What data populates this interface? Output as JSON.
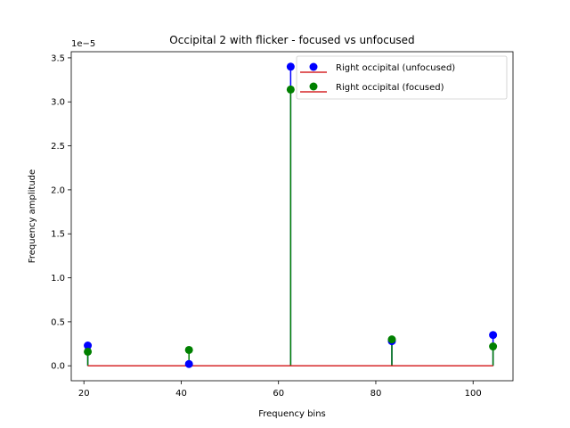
{
  "chart_data": {
    "type": "scatter",
    "title": "Occipital 2 with flicker - focused vs unfocused",
    "xlabel": "Frequency bins",
    "ylabel": "Frequency amplitude",
    "y_scale_label": "1e−5",
    "xlim": [
      17.4,
      108.2
    ],
    "ylim": [
      -0.17,
      3.57
    ],
    "x_ticks": [
      20,
      40,
      60,
      80,
      100
    ],
    "x_tick_labels": [
      "20",
      "40",
      "60",
      "80",
      "100"
    ],
    "y_ticks": [
      0.0,
      0.5,
      1.0,
      1.5,
      2.0,
      2.5,
      3.0,
      3.5
    ],
    "y_tick_labels": [
      "0.0",
      "0.5",
      "1.0",
      "1.5",
      "2.0",
      "2.5",
      "3.0",
      "3.5"
    ],
    "legend_position": "top-right",
    "baseline": {
      "value": 0,
      "color": "#d62728"
    },
    "grid": false,
    "series": [
      {
        "name": "Right occipital (unfocused)",
        "color": "#0000ff",
        "x": [
          20.8,
          41.6,
          62.5,
          83.3,
          104.1
        ],
        "values": [
          0.23,
          0.02,
          3.4,
          0.28,
          0.35
        ]
      },
      {
        "name": "Right occipital (focused)",
        "color": "#008000",
        "x": [
          20.8,
          41.6,
          62.5,
          83.3,
          104.1
        ],
        "values": [
          0.16,
          0.18,
          3.14,
          0.3,
          0.22
        ]
      }
    ]
  }
}
